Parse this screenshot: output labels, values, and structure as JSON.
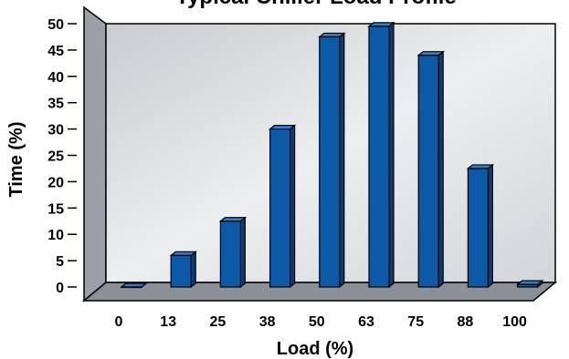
{
  "chart_data": {
    "type": "bar",
    "title": "Typical Chiller Load Profile",
    "xlabel": "Load (%)",
    "ylabel": "Time (%)",
    "categories": [
      "0",
      "13",
      "25",
      "38",
      "50",
      "63",
      "75",
      "88",
      "100"
    ],
    "values": [
      0,
      6,
      12.5,
      30,
      47.5,
      49.5,
      44,
      22.5,
      0.5
    ],
    "ylim": [
      0,
      50
    ],
    "yticks": [
      "0",
      "5",
      "10",
      "15",
      "20",
      "25",
      "30",
      "35",
      "40",
      "45",
      "50"
    ],
    "grid": false,
    "legend": "none",
    "style": "3d",
    "colors": {
      "bar_front": "#0a5aa8",
      "bar_side": "#063e78",
      "bar_top": "#2f7fcc",
      "back_wall": "#e3e6ea",
      "side_wall": "#9ca0a6",
      "floor": "#8c9096"
    }
  }
}
